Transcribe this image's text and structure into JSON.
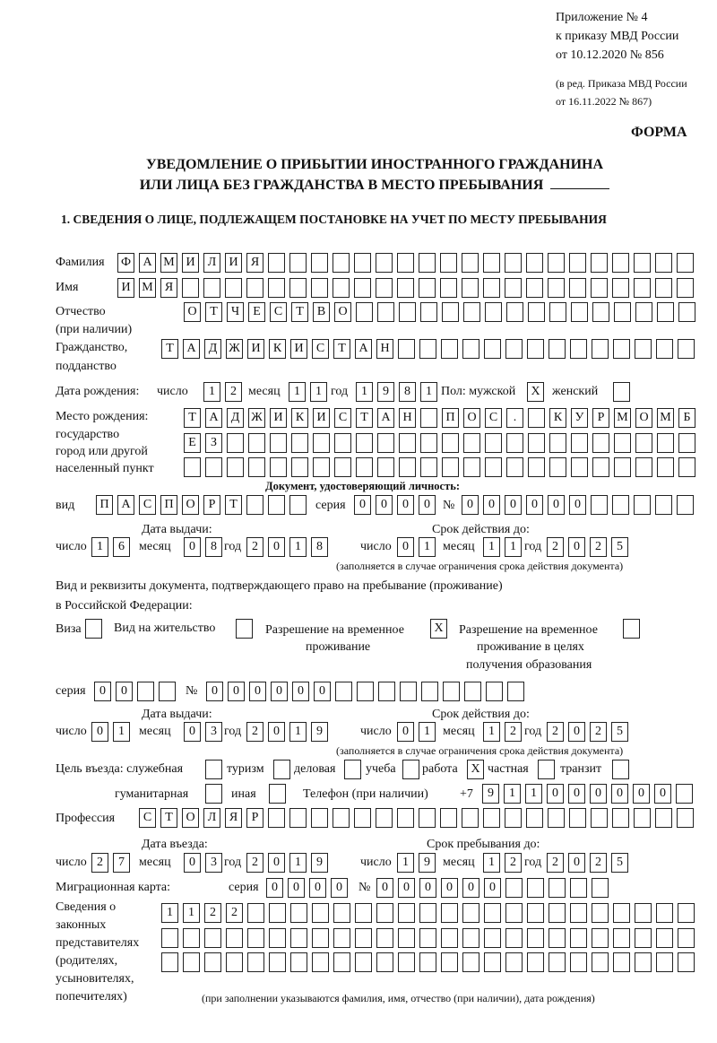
{
  "header": {
    "appendix_line1": "Приложение № 4",
    "appendix_line2": "к приказу МВД России",
    "appendix_line3": "от 10.12.2020 № 856",
    "amend_line1": "(в ред. Приказа МВД России",
    "amend_line2": "от 16.11.2022 № 867)",
    "form_label": "ФОРМА",
    "title_line1": "УВЕДОМЛЕНИЕ О ПРИБЫТИИ ИНОСТРАННОГО ГРАЖДАНИНА",
    "title_line2": "ИЛИ ЛИЦА БЕЗ ГРАЖДАНСТВА В МЕСТО ПРЕБЫВАНИЯ",
    "section_title": "1. СВЕДЕНИЯ О ЛИЦЕ, ПОДЛЕЖАЩЕМ ПОСТАНОВКЕ НА УЧЕТ ПО МЕСТУ ПРЕБЫВАНИЯ"
  },
  "labels": {
    "surname": "Фамилия",
    "name": "Имя",
    "patronymic_1": "Отчество",
    "patronymic_2": "(при наличии)",
    "citizenship_1": "Гражданство,",
    "citizenship_2": "подданство",
    "birth_date": "Дата рождения:",
    "day": "число",
    "month": "месяц",
    "year": "год",
    "sex": "Пол: мужской",
    "female": "женский",
    "birthplace_1": "Место рождения:",
    "birthplace_2": "государство",
    "birthplace_3": "город или другой",
    "birthplace_4": "населенный пункт",
    "identity_doc": "Документ, удостоверяющий личность:",
    "doc_type": "вид",
    "series": "серия",
    "number": "№",
    "issue_date": "Дата выдачи:",
    "valid_until": "Срок действия до:",
    "validity_note": "(заполняется в случае ограничения срока действия документа)",
    "permit_1": "Вид и реквизиты документа, подтверждающего право на пребывание (проживание)",
    "permit_2": "в Российской Федерации:",
    "visa": "Виза",
    "residence_permit": "Вид на жительство",
    "temp_residence_1": "Разрешение на временное",
    "temp_residence_2": "проживание",
    "temp_edu_1": "Разрешение на временное",
    "temp_edu_2": "проживание в целях",
    "temp_edu_3": "получения образования",
    "purpose": "Цель въезда: служебная",
    "tourism": "туризм",
    "business": "деловая",
    "study": "учеба",
    "work": "работа",
    "private": "частная",
    "transit": "транзит",
    "humanitarian": "гуманитарная",
    "other": "иная",
    "phone": "Телефон (при наличии)",
    "phone_prefix": "+7",
    "profession": "Профессия",
    "entry_date": "Дата въезда:",
    "stay_until": "Срок пребывания до:",
    "migration_card": "Миграционная карта:",
    "reps_1": "Сведения о",
    "reps_2": "законных",
    "reps_3": "представителях",
    "reps_4": "(родителях,",
    "reps_5": "усыновителях,",
    "reps_6": "попечителях)",
    "reps_note": "(при заполнении указываются фамилия, имя, отчество (при наличии), дата рождения)"
  },
  "values": {
    "surname": "ФАМИЛИЯ",
    "name": "ИМЯ",
    "patronymic": "ОТЧЕСТВО",
    "citizenship": "ТАДЖИКИСТАН",
    "birth_day": "12",
    "birth_month": "11",
    "birth_year": "1981",
    "sex_male": "X",
    "sex_female": "",
    "birthplace_1": "ТАДЖИКИСТАН ПОС. КУРМОМБ",
    "birthplace_2": "ЕЗ",
    "birthplace_3": "",
    "doc_type": "ПАСПОРТ",
    "doc_series": "0000",
    "doc_number": "000000",
    "doc_issue_day": "16",
    "doc_issue_month": "08",
    "doc_issue_year": "2018",
    "doc_valid_day": "01",
    "doc_valid_month": "11",
    "doc_valid_year": "2025",
    "permit_visa": "",
    "permit_residence": "",
    "permit_temp": "X",
    "permit_temp_edu": "",
    "permit_series": "00",
    "permit_number": "000000",
    "permit_issue_day": "01",
    "permit_issue_month": "03",
    "permit_issue_year": "2019",
    "permit_valid_day": "01",
    "permit_valid_month": "12",
    "permit_valid_year": "2025",
    "purpose_official": "",
    "purpose_tourism": "",
    "purpose_business": "",
    "purpose_study": "",
    "purpose_work": "X",
    "purpose_private": "",
    "purpose_transit": "",
    "purpose_humanitarian": "",
    "purpose_other": "",
    "phone": "911000000",
    "profession": "СТОЛЯР",
    "entry_day": "27",
    "entry_month": "03",
    "entry_year": "2019",
    "stay_day": "19",
    "stay_month": "12",
    "stay_year": "2025",
    "mig_series": "0000",
    "mig_number": "000000",
    "reps_1": "1122",
    "reps_2": "",
    "reps_3": ""
  }
}
